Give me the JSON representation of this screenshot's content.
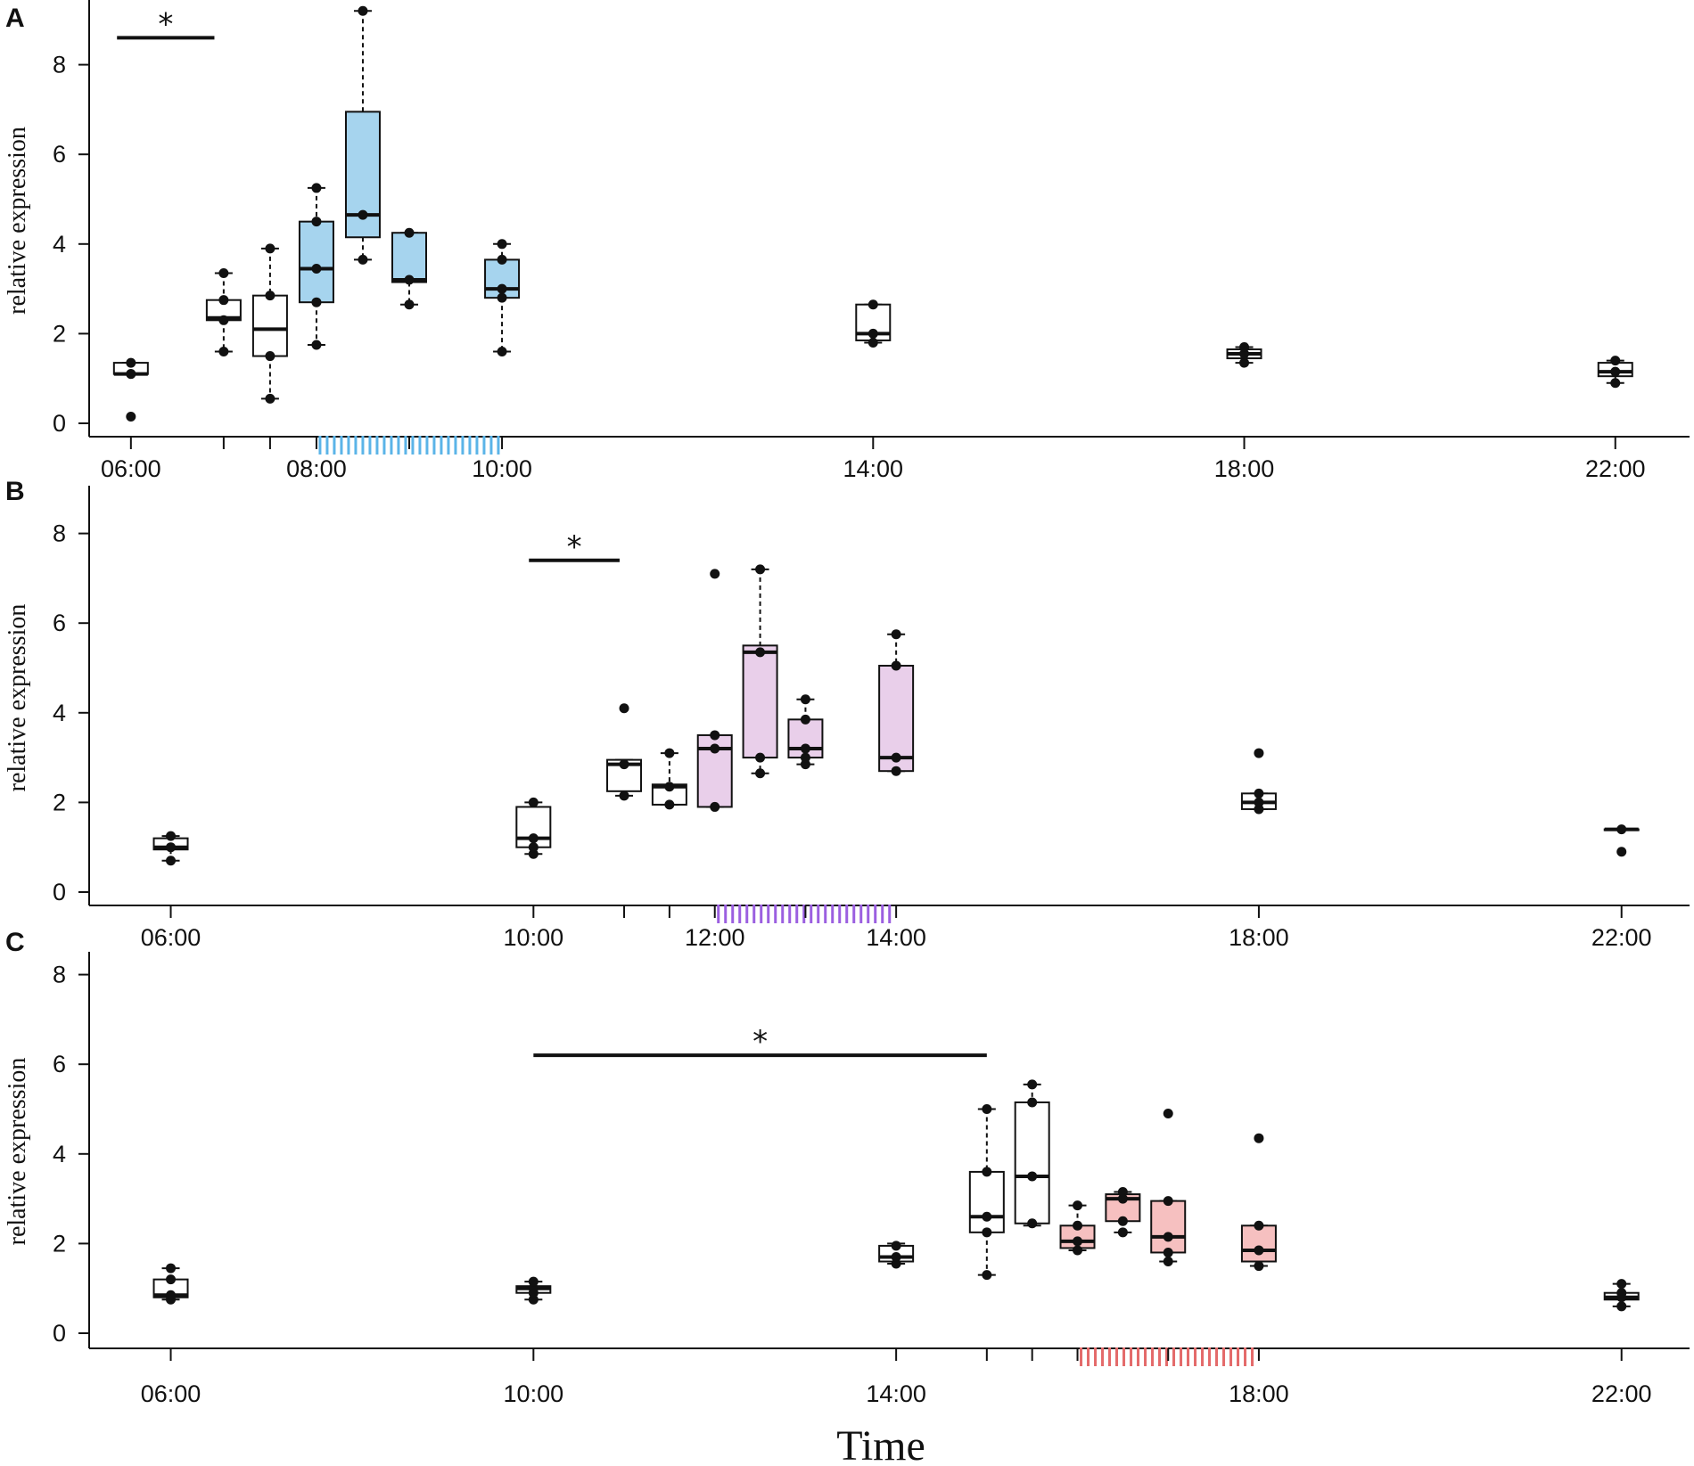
{
  "chart_data": {
    "type": "box",
    "xlabel": "Time",
    "ylabel": "relative expression",
    "x_unit": "hours",
    "ylim": [
      0,
      9.2
    ],
    "yticks": [
      0,
      2,
      4,
      6,
      8
    ],
    "panels": [
      {
        "label": "A",
        "highlight_color": "#a6d4ee",
        "hatch_color": "#5bb4e8",
        "hatch_range": [
          8,
          10
        ],
        "xlim": [
          5.55,
          22.8
        ],
        "xticks": [
          {
            "t": 6,
            "label": "06:00"
          },
          {
            "t": 7,
            "label": ""
          },
          {
            "t": 7.5,
            "label": ""
          },
          {
            "t": 8,
            "label": "08:00"
          },
          {
            "t": 9,
            "label": ""
          },
          {
            "t": 10,
            "label": "10:00"
          },
          {
            "t": 14,
            "label": "14:00"
          },
          {
            "t": 18,
            "label": "18:00"
          },
          {
            "t": 22,
            "label": "22:00"
          }
        ],
        "significance": {
          "x1": 5.85,
          "x2": 6.9,
          "y": 8.6,
          "symbol": "*"
        },
        "boxes": [
          {
            "t": 6.0,
            "q1": 1.1,
            "median": 1.1,
            "q3": 1.35,
            "wlow": 1.1,
            "whigh": 1.35,
            "points": [
              0.15,
              1.1,
              1.1,
              1.35
            ],
            "highlight": false
          },
          {
            "t": 7.0,
            "q1": 2.3,
            "median": 2.35,
            "q3": 2.75,
            "wlow": 1.6,
            "whigh": 3.35,
            "points": [
              1.6,
              2.3,
              2.75,
              3.35
            ],
            "highlight": false
          },
          {
            "t": 7.5,
            "q1": 1.5,
            "median": 2.1,
            "q3": 2.85,
            "wlow": 0.55,
            "whigh": 3.9,
            "points": [
              0.55,
              1.5,
              2.85,
              3.9
            ],
            "highlight": false
          },
          {
            "t": 8.0,
            "q1": 2.7,
            "median": 3.45,
            "q3": 4.5,
            "wlow": 1.75,
            "whigh": 5.25,
            "points": [
              1.75,
              2.7,
              3.45,
              4.5,
              5.25
            ],
            "highlight": true
          },
          {
            "t": 8.5,
            "q1": 4.15,
            "median": 4.65,
            "q3": 6.95,
            "wlow": 3.65,
            "whigh": 9.2,
            "points": [
              3.65,
              4.65,
              9.2
            ],
            "highlight": true
          },
          {
            "t": 9.0,
            "q1": 3.15,
            "median": 3.2,
            "q3": 4.25,
            "wlow": 2.65,
            "whigh": 4.25,
            "points": [
              2.65,
              3.2,
              4.25
            ],
            "highlight": true
          },
          {
            "t": 10.0,
            "q1": 2.8,
            "median": 3.0,
            "q3": 3.65,
            "wlow": 1.6,
            "whigh": 4.0,
            "points": [
              1.6,
              2.8,
              3.0,
              3.65,
              4.0
            ],
            "highlight": true
          },
          {
            "t": 14.0,
            "q1": 1.85,
            "median": 2.0,
            "q3": 2.65,
            "wlow": 1.8,
            "whigh": 2.65,
            "points": [
              1.8,
              2.0,
              2.65
            ],
            "highlight": false
          },
          {
            "t": 18.0,
            "q1": 1.45,
            "median": 1.55,
            "q3": 1.65,
            "wlow": 1.35,
            "whigh": 1.7,
            "points": [
              1.35,
              1.55,
              1.7
            ],
            "highlight": false
          },
          {
            "t": 22.0,
            "q1": 1.05,
            "median": 1.15,
            "q3": 1.35,
            "wlow": 0.9,
            "whigh": 1.4,
            "points": [
              0.9,
              1.15,
              1.4
            ],
            "highlight": false
          }
        ]
      },
      {
        "label": "B",
        "highlight_color": "#e9cfea",
        "hatch_color": "#9b5fe0",
        "hatch_range": [
          12,
          14
        ],
        "xlim": [
          5.1,
          22.75
        ],
        "xticks": [
          {
            "t": 6,
            "label": "06:00"
          },
          {
            "t": 10,
            "label": "10:00"
          },
          {
            "t": 11,
            "label": ""
          },
          {
            "t": 11.5,
            "label": ""
          },
          {
            "t": 12,
            "label": "12:00"
          },
          {
            "t": 13,
            "label": ""
          },
          {
            "t": 14,
            "label": "14:00"
          },
          {
            "t": 18,
            "label": "18:00"
          },
          {
            "t": 22,
            "label": "22:00"
          }
        ],
        "significance": {
          "x1": 9.95,
          "x2": 10.95,
          "y": 7.4,
          "symbol": "*"
        },
        "boxes": [
          {
            "t": 6.0,
            "q1": 0.95,
            "median": 1.0,
            "q3": 1.2,
            "wlow": 0.7,
            "whigh": 1.25,
            "points": [
              0.7,
              1.0,
              1.25
            ],
            "highlight": false
          },
          {
            "t": 10.0,
            "q1": 1.0,
            "median": 1.2,
            "q3": 1.9,
            "wlow": 0.85,
            "whigh": 2.0,
            "points": [
              0.85,
              1.0,
              1.2,
              2.0
            ],
            "highlight": false
          },
          {
            "t": 11.0,
            "q1": 2.25,
            "median": 2.85,
            "q3": 2.95,
            "wlow": 2.15,
            "whigh": 2.95,
            "points": [
              2.15,
              2.85,
              4.1
            ],
            "highlight": false
          },
          {
            "t": 11.5,
            "q1": 1.95,
            "median": 2.35,
            "q3": 2.4,
            "wlow": 1.95,
            "whigh": 3.1,
            "points": [
              1.95,
              2.35,
              3.1
            ],
            "highlight": false
          },
          {
            "t": 12.0,
            "q1": 1.9,
            "median": 3.2,
            "q3": 3.5,
            "wlow": 1.9,
            "whigh": 3.5,
            "points": [
              1.9,
              3.2,
              3.5,
              7.1
            ],
            "highlight": true
          },
          {
            "t": 12.5,
            "q1": 3.0,
            "median": 5.35,
            "q3": 5.5,
            "wlow": 2.65,
            "whigh": 7.2,
            "points": [
              2.65,
              3.0,
              5.35,
              7.2
            ],
            "highlight": true
          },
          {
            "t": 13.0,
            "q1": 3.0,
            "median": 3.2,
            "q3": 3.85,
            "wlow": 2.85,
            "whigh": 4.3,
            "points": [
              2.85,
              3.0,
              3.2,
              3.85,
              4.3
            ],
            "highlight": true
          },
          {
            "t": 14.0,
            "q1": 2.7,
            "median": 3.0,
            "q3": 5.05,
            "wlow": 2.7,
            "whigh": 5.75,
            "points": [
              2.7,
              3.0,
              5.05,
              5.75
            ],
            "highlight": true
          },
          {
            "t": 18.0,
            "q1": 1.85,
            "median": 2.0,
            "q3": 2.2,
            "wlow": 1.85,
            "whigh": 2.2,
            "points": [
              1.85,
              2.0,
              2.2,
              3.1
            ],
            "highlight": false
          },
          {
            "t": 22.0,
            "q1": 1.4,
            "median": 1.4,
            "q3": 1.4,
            "wlow": 1.4,
            "whigh": 1.4,
            "points": [
              0.9,
              1.4
            ],
            "highlight": false
          }
        ]
      },
      {
        "label": "C",
        "highlight_color": "#f6c0c0",
        "hatch_color": "#e46a6a",
        "hatch_range": [
          16,
          18
        ],
        "xlim": [
          5.1,
          22.75
        ],
        "xticks": [
          {
            "t": 6,
            "label": "06:00"
          },
          {
            "t": 10,
            "label": "10:00"
          },
          {
            "t": 14,
            "label": "14:00"
          },
          {
            "t": 15,
            "label": ""
          },
          {
            "t": 15.5,
            "label": ""
          },
          {
            "t": 16,
            "label": ""
          },
          {
            "t": 17,
            "label": ""
          },
          {
            "t": 18,
            "label": "18:00"
          },
          {
            "t": 22,
            "label": "22:00"
          }
        ],
        "significance": {
          "x1": 10.0,
          "x2": 15.0,
          "y": 6.2,
          "symbol": "*"
        },
        "boxes": [
          {
            "t": 6.0,
            "q1": 0.8,
            "median": 0.85,
            "q3": 1.2,
            "wlow": 0.75,
            "whigh": 1.45,
            "points": [
              0.75,
              0.85,
              1.2,
              1.45
            ],
            "highlight": false
          },
          {
            "t": 10.0,
            "q1": 0.9,
            "median": 1.0,
            "q3": 1.05,
            "wlow": 0.75,
            "whigh": 1.15,
            "points": [
              0.75,
              0.9,
              1.0,
              1.15
            ],
            "highlight": false
          },
          {
            "t": 14.0,
            "q1": 1.6,
            "median": 1.7,
            "q3": 1.95,
            "wlow": 1.55,
            "whigh": 2.0,
            "points": [
              1.55,
              1.7,
              1.95
            ],
            "highlight": false
          },
          {
            "t": 15.0,
            "q1": 2.25,
            "median": 2.6,
            "q3": 3.6,
            "wlow": 1.3,
            "whigh": 5.0,
            "points": [
              1.3,
              2.25,
              2.6,
              3.6,
              5.0
            ],
            "highlight": false
          },
          {
            "t": 15.5,
            "q1": 2.45,
            "median": 3.5,
            "q3": 5.15,
            "wlow": 2.4,
            "whigh": 5.55,
            "points": [
              2.45,
              3.5,
              5.15,
              5.55
            ],
            "highlight": false
          },
          {
            "t": 16.0,
            "q1": 1.9,
            "median": 2.05,
            "q3": 2.4,
            "wlow": 1.85,
            "whigh": 2.85,
            "points": [
              1.85,
              2.05,
              2.4,
              2.85
            ],
            "highlight": true
          },
          {
            "t": 16.5,
            "q1": 2.5,
            "median": 3.0,
            "q3": 3.1,
            "wlow": 2.25,
            "whigh": 3.15,
            "points": [
              2.25,
              2.5,
              3.0,
              3.15
            ],
            "highlight": true
          },
          {
            "t": 17.0,
            "q1": 1.8,
            "median": 2.15,
            "q3": 2.95,
            "wlow": 1.6,
            "whigh": 2.95,
            "points": [
              1.6,
              1.8,
              2.15,
              2.95,
              4.9
            ],
            "highlight": true
          },
          {
            "t": 18.0,
            "q1": 1.6,
            "median": 1.85,
            "q3": 2.4,
            "wlow": 1.5,
            "whigh": 2.4,
            "points": [
              1.5,
              1.85,
              2.4,
              4.35
            ],
            "highlight": true
          },
          {
            "t": 22.0,
            "q1": 0.75,
            "median": 0.8,
            "q3": 0.9,
            "wlow": 0.6,
            "whigh": 1.1,
            "points": [
              0.6,
              0.8,
              0.9,
              1.1
            ],
            "highlight": false
          }
        ]
      }
    ]
  }
}
